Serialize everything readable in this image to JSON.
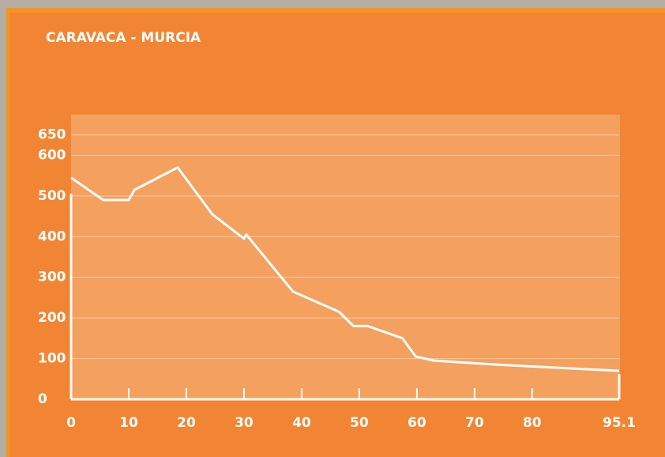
{
  "chart_data": {
    "type": "line",
    "title": "CARAVACA - MURCIA",
    "x": [
      0,
      5.6,
      10,
      11,
      18.5,
      24.5,
      30,
      30.4,
      38.5,
      46.5,
      49,
      51.5,
      57.5,
      59.8,
      63,
      74,
      95.1
    ],
    "series": [
      {
        "color": "#ffffff",
        "values": [
          545,
          490,
          490,
          515,
          570,
          455,
          395,
          405,
          265,
          215,
          180,
          180,
          150,
          105,
          95,
          85,
          70
        ]
      }
    ],
    "xlim": [
      0,
      95.1
    ],
    "xticks": [
      0,
      10,
      20,
      30,
      40,
      50,
      60,
      70,
      80,
      95.1
    ],
    "ylim": [
      0,
      700
    ],
    "yticks": [
      0,
      100,
      200,
      300,
      400,
      500,
      600,
      650
    ],
    "grid": true
  }
}
